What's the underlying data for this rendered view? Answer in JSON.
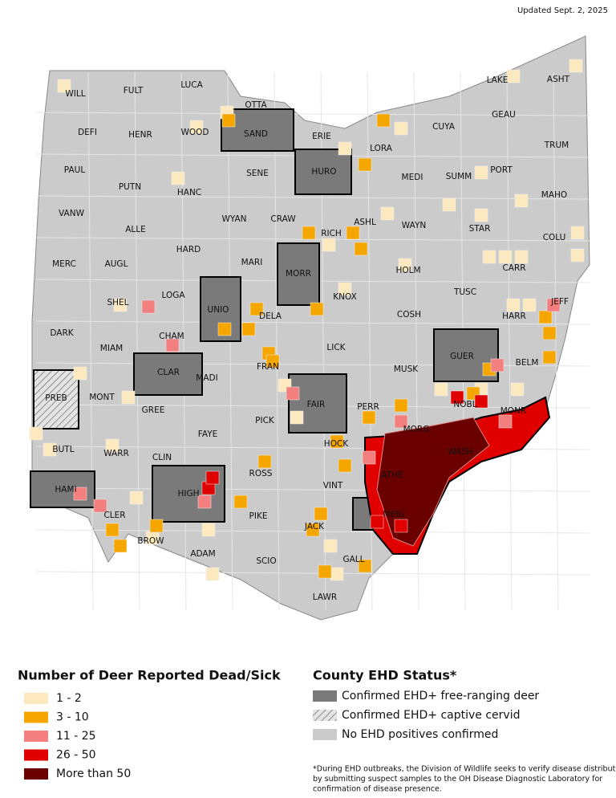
{
  "updated": "Updated Sept. 2, 2025",
  "counties": [
    "WILL",
    "FULT",
    "LUCA",
    "OTTA",
    "LAKE",
    "ASHT",
    "SAND",
    "ERIE",
    "CUYA",
    "GEAU",
    "DEFI",
    "HENR",
    "WOOD",
    "LORA",
    "TRUM",
    "PAUL",
    "HURO",
    "SUMM",
    "PORT",
    "MEDI",
    "SENE",
    "PUTN",
    "HANC",
    "MAHO",
    "VANW",
    "WYAN",
    "CRAW",
    "ASHL",
    "WAYN",
    "STAR",
    "ALLE",
    "COLU",
    "RICH",
    "HARD",
    "MERC",
    "AUGL",
    "MARI",
    "MORR",
    "HOLM",
    "CARR",
    "LOGA",
    "SHEL",
    "KNOX",
    "TUSC",
    "UNIO",
    "DELA",
    "COSH",
    "HARR",
    "JEFF",
    "DARK",
    "CHAM",
    "MIAM",
    "LICK",
    "GUER",
    "BELM",
    "CLAR",
    "MUSK",
    "FRAN",
    "MADI",
    "MONT",
    "PREB",
    "FAIR",
    "PERR",
    "NOBL",
    "MONR",
    "GREE",
    "FAYE",
    "PICK",
    "MORG",
    "HOCK",
    "WASH",
    "BUTL",
    "WARR",
    "CLIN",
    "ROSS",
    "ATHE",
    "VINT",
    "HAMI",
    "HIGH",
    "CLER",
    "MEIG",
    "PIKE",
    "JACK",
    "BROW",
    "ADAM",
    "SCIO",
    "GALL",
    "LAWR"
  ],
  "legend_count": {
    "title": "Number of Deer Reported Dead/Sick",
    "items": [
      "1 - 2",
      "3 - 10",
      "11 - 25",
      "26 - 50",
      "More than 50"
    ]
  },
  "legend_status": {
    "title": "County EHD Status*",
    "items": [
      "Confirmed EHD+ free-ranging deer",
      "Confirmed EHD+ captive cervid",
      "No EHD positives confirmed"
    ]
  },
  "footnote": [
    "*During EHD outbreaks, the Division of Wildlife seeks to verify disease distribution",
    "by submitting suspect samples to the OH Disease Diagnostic Laboratory for",
    "confirmation of disease presence."
  ]
}
